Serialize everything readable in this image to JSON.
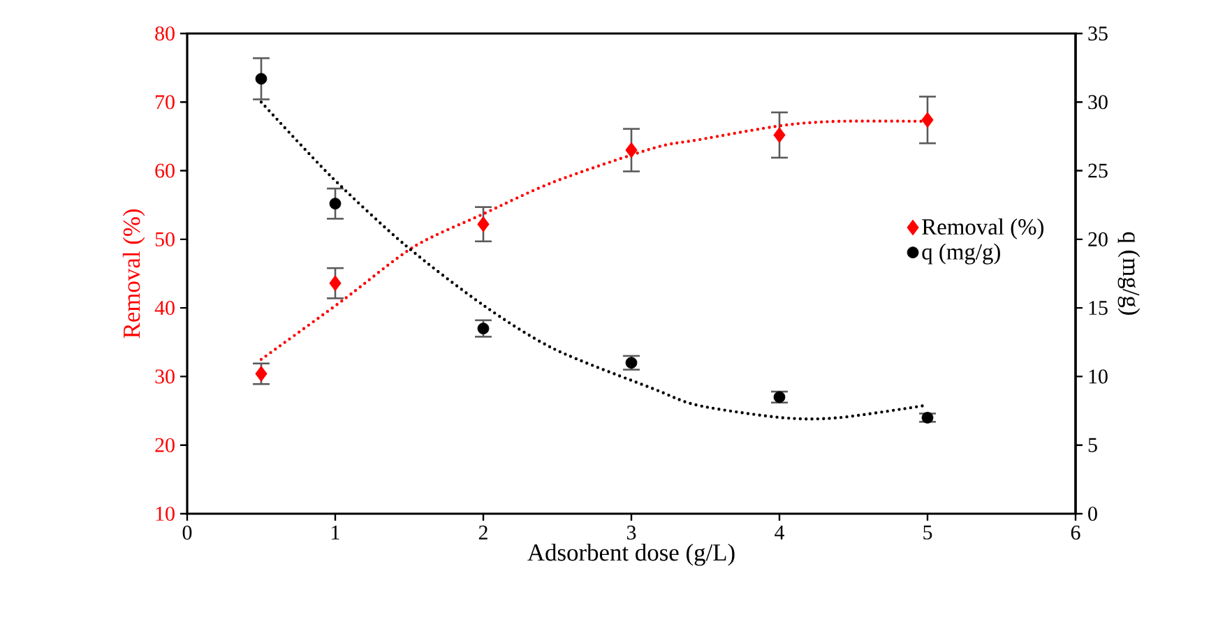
{
  "chart_data": {
    "type": "scatter",
    "xlabel": "Adsorbent dose (g/L)",
    "ylabel": "Removal (%)",
    "y2label": "q (mg/g)",
    "xlim": [
      0,
      6
    ],
    "xticks": [
      0,
      1,
      2,
      3,
      4,
      5,
      6
    ],
    "ylim": [
      10,
      80
    ],
    "yticks": [
      10,
      20,
      30,
      40,
      50,
      60,
      70,
      80
    ],
    "y2lim": [
      0,
      35
    ],
    "y2ticks": [
      0,
      5,
      10,
      15,
      20,
      25,
      30,
      35
    ],
    "legend": "right",
    "series": [
      {
        "name": "Removal (%)",
        "color": "#ff0000",
        "marker": "diamond",
        "x": [
          0.5,
          1,
          2,
          3,
          4,
          5
        ],
        "values": [
          30.4,
          43.6,
          52.2,
          63.0,
          65.2,
          67.4
        ],
        "errors": [
          1.5,
          2.2,
          2.5,
          3.1,
          3.3,
          3.4
        ]
      },
      {
        "name": "q (mg/g)",
        "axis": "y2",
        "color": "#000000",
        "marker": "circle",
        "x": [
          0.5,
          1,
          2,
          3,
          4,
          5
        ],
        "values": [
          31.7,
          22.6,
          13.5,
          11.0,
          8.5,
          7.0
        ],
        "errors": [
          1.5,
          1.1,
          0.6,
          0.5,
          0.4,
          0.3
        ]
      },
      {
        "type": "line",
        "color": "#ff0000",
        "line_style": "dotted",
        "marker": "none",
        "x": [
          0.5,
          1.05,
          1.53,
          2.0,
          2.48,
          3.15,
          3.45,
          4.02,
          4.4,
          4.99
        ],
        "values": [
          32.5,
          41.1,
          48.9,
          53.7,
          58.4,
          63.3,
          64.5,
          66.6,
          67.2,
          67.2
        ]
      },
      {
        "type": "line",
        "axis": "y2",
        "color": "#000000",
        "line_style": "dotted",
        "marker": "none",
        "x": [
          0.5,
          0.97,
          1.47,
          2.0,
          2.48,
          3.15,
          3.45,
          4.02,
          4.4,
          4.99
        ],
        "values": [
          30.0,
          24.6,
          19.6,
          15.2,
          12.0,
          9.1,
          7.9,
          7.0,
          7.0,
          7.9
        ]
      }
    ]
  }
}
